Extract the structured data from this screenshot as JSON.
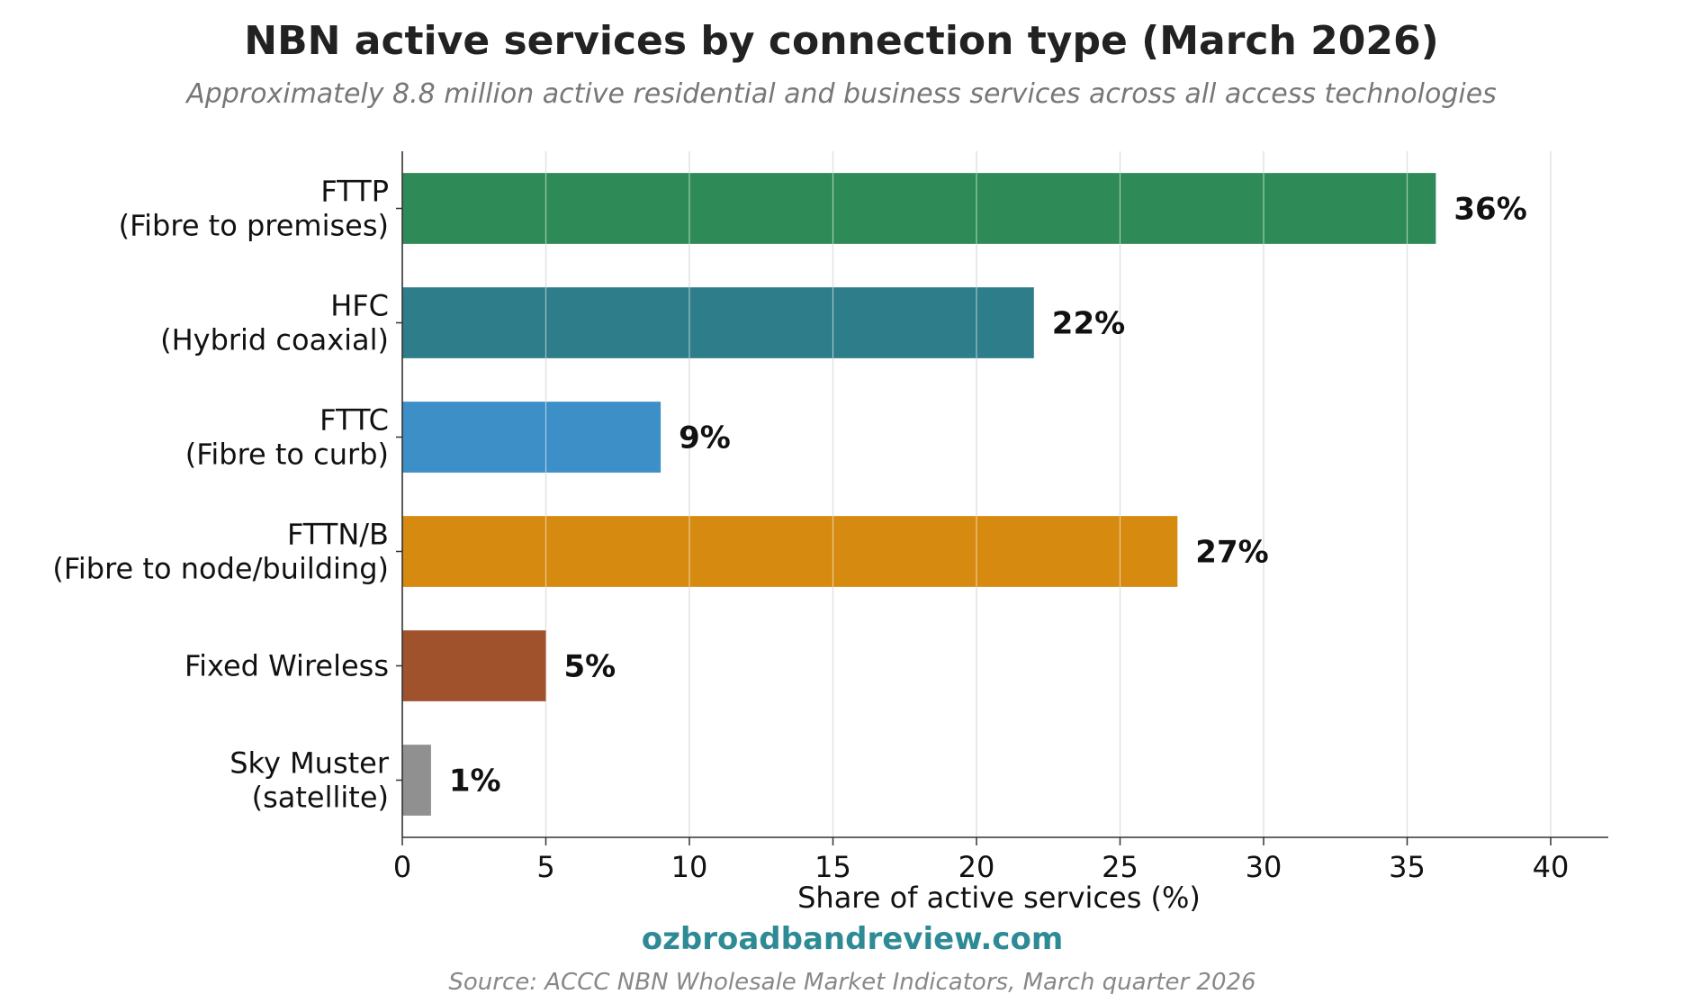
{
  "chart_data": {
    "type": "bar",
    "orientation": "horizontal",
    "title": "NBN active services by connection type (March 2026)",
    "subtitle": "Approximately 8.8 million active residential and business services across all access technologies",
    "categories": [
      [
        "FTTP",
        "(Fibre to premises)"
      ],
      [
        "HFC",
        "(Hybrid coaxial)"
      ],
      [
        "FTTC",
        "(Fibre to curb)"
      ],
      [
        "FTTN/B",
        "(Fibre to node/building)"
      ],
      [
        "Fixed Wireless"
      ],
      [
        "Sky Muster",
        "(satellite)"
      ]
    ],
    "values": [
      36,
      22,
      9,
      27,
      5,
      1
    ],
    "data_labels": [
      "36%",
      "22%",
      "9%",
      "27%",
      "5%",
      "1%"
    ],
    "colors": [
      "#2e8b57",
      "#2e7d8a",
      "#3d8fc7",
      "#d68a10",
      "#a0522d",
      "#909090"
    ],
    "xlabel": "Share of active services (%)",
    "xlim": [
      0,
      42
    ],
    "xticks": [
      0,
      5,
      10,
      15,
      20,
      25,
      30,
      35,
      40
    ],
    "grid": "vertical",
    "legend": "none"
  },
  "footer": {
    "brand": "ozbroadbandreview.com",
    "brand_color": "#2e8b96",
    "source": "Source: ACCC NBN Wholesale Market Indicators, March quarter 2026"
  }
}
